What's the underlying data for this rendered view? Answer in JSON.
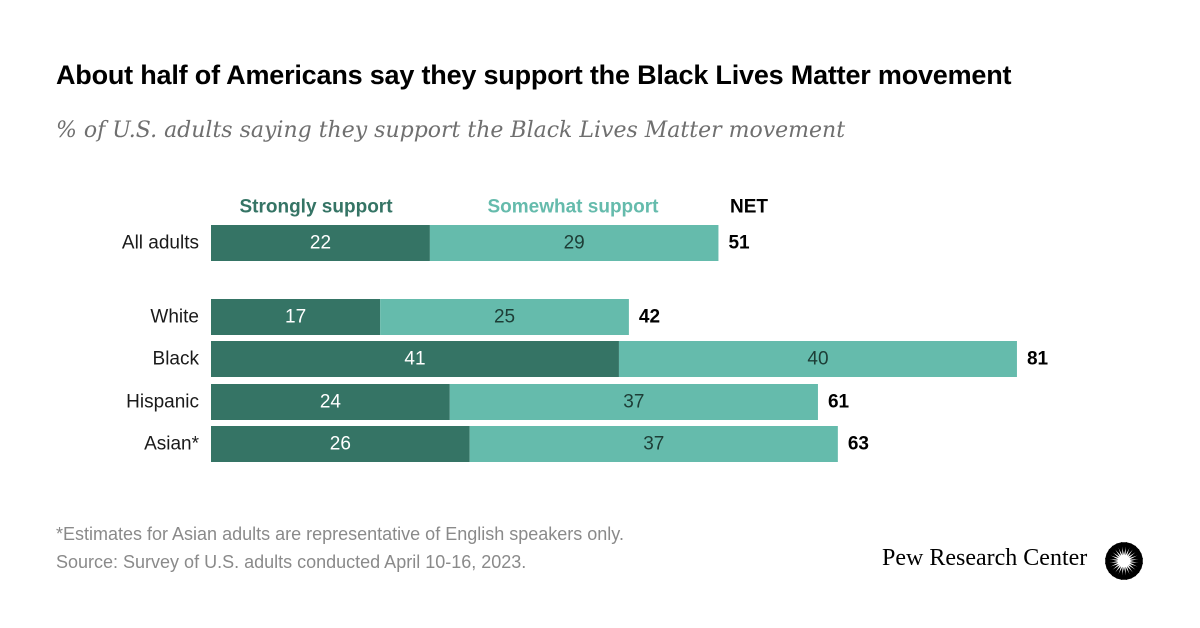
{
  "title": "About half of Americans say they support the Black Lives Matter movement",
  "subtitle": "% of U.S. adults saying they support the Black Lives Matter movement",
  "chart_data": {
    "type": "bar",
    "orientation": "horizontal",
    "stacked": true,
    "categories": [
      "All adults",
      "White",
      "Black",
      "Hispanic",
      "Asian*"
    ],
    "series": [
      {
        "name": "Strongly support",
        "values": [
          22,
          17,
          41,
          24,
          26
        ],
        "color": "#357465"
      },
      {
        "name": "Somewhat support",
        "values": [
          29,
          25,
          40,
          37,
          37
        ],
        "color": "#65bbac"
      }
    ],
    "net_label": "NET",
    "net_values": [
      51,
      42,
      81,
      61,
      63
    ],
    "xlim": [
      0,
      81
    ]
  },
  "footnotes": {
    "note": "*Estimates for Asian adults are representative of English speakers only.",
    "source": "Source: Survey of U.S. adults conducted April 10-16, 2023."
  },
  "brand": {
    "name": "Pew Research Center",
    "logo_icon": "pew-sunburst-icon"
  }
}
